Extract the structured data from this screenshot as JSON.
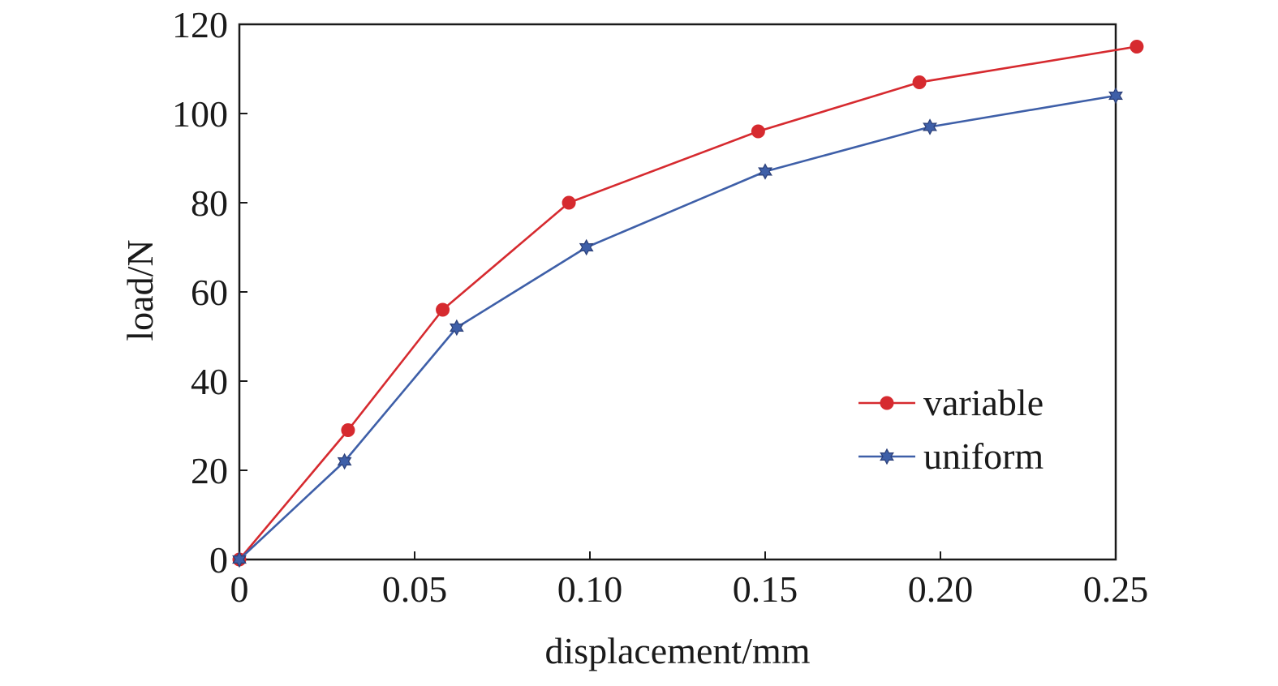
{
  "chart_data": {
    "type": "line",
    "title": "",
    "xlabel": "displacement/mm",
    "ylabel": "load/N",
    "xlim": [
      0,
      0.25
    ],
    "ylim": [
      0,
      120
    ],
    "xticks": [
      0,
      0.05,
      0.1,
      0.15,
      0.2,
      0.25
    ],
    "xtick_labels": [
      "0",
      "0.05",
      "0.10",
      "0.15",
      "0.20",
      "0.25"
    ],
    "yticks": [
      0,
      20,
      40,
      60,
      80,
      100,
      120
    ],
    "ytick_labels": [
      "0",
      "20",
      "40",
      "60",
      "80",
      "100",
      "120"
    ],
    "grid": false,
    "legend_position": "bottom-right",
    "series": [
      {
        "name": "variable",
        "color": "#d62a2f",
        "marker": "circle",
        "x": [
          0,
          0.031,
          0.058,
          0.094,
          0.148,
          0.194,
          0.256
        ],
        "y": [
          0,
          29,
          56,
          80,
          96,
          107,
          115
        ]
      },
      {
        "name": "uniform",
        "color": "#3e5fa8",
        "marker": "star",
        "x": [
          0,
          0.03,
          0.062,
          0.099,
          0.15,
          0.197,
          0.25
        ],
        "y": [
          0,
          22,
          52,
          70,
          87,
          97,
          104
        ]
      }
    ]
  }
}
